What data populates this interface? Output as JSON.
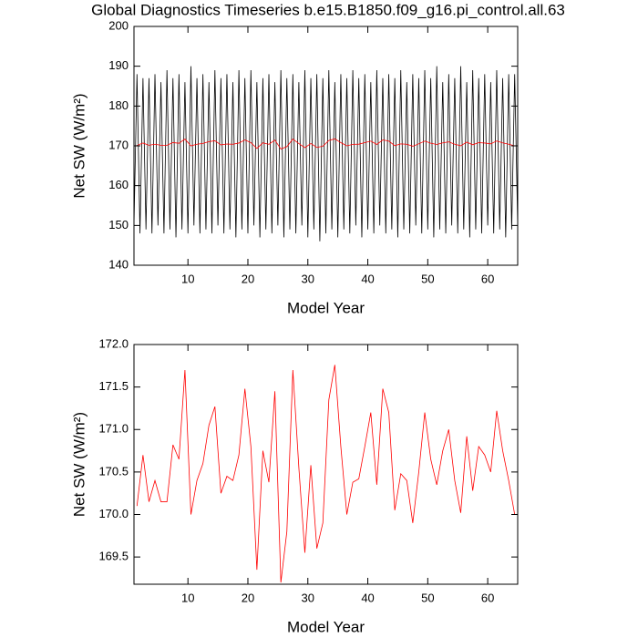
{
  "chart_data": [
    {
      "type": "line",
      "title": "Global Diagnostics Timeseries b.e15.B1850.f09_g16.pi_control.all.63",
      "xlabel": "Model Year",
      "ylabel": "Net SW (W/m²)",
      "xlim": [
        1,
        65
      ],
      "ylim": [
        140,
        200
      ],
      "xticks": [
        10,
        20,
        30,
        40,
        50,
        60
      ],
      "yticks": [
        140,
        150,
        160,
        170,
        180,
        190,
        200
      ],
      "series": [
        {
          "color": "#000000",
          "x": [
            1,
            1.5,
            2,
            2.5,
            3,
            3.5,
            4,
            4.5,
            5,
            5.5,
            6,
            6.5,
            7,
            7.5,
            8,
            8.5,
            9,
            9.5,
            10,
            10.5,
            11,
            11.5,
            12,
            12.5,
            13,
            13.5,
            14,
            14.5,
            15,
            15.5,
            16,
            16.5,
            17,
            17.5,
            18,
            18.5,
            19,
            19.5,
            20,
            20.5,
            21,
            21.5,
            22,
            22.5,
            23,
            23.5,
            24,
            24.5,
            25,
            25.5,
            26,
            26.5,
            27,
            27.5,
            28,
            28.5,
            29,
            29.5,
            30,
            30.5,
            31,
            31.5,
            32,
            32.5,
            33,
            33.5,
            34,
            34.5,
            35,
            35.5,
            36,
            36.5,
            37,
            37.5,
            38,
            38.5,
            39,
            39.5,
            40,
            40.5,
            41,
            41.5,
            42,
            42.5,
            43,
            43.5,
            44,
            44.5,
            45,
            45.5,
            46,
            46.5,
            47,
            47.5,
            48,
            48.5,
            49,
            49.5,
            50,
            50.5,
            51,
            51.5,
            52,
            52.5,
            53,
            53.5,
            54,
            54.5,
            55,
            55.5,
            56,
            56.5,
            57,
            57.5,
            58,
            58.5,
            59,
            59.5,
            60,
            60.5,
            61,
            61.5,
            62,
            62.5,
            63,
            63.5,
            64,
            64.5,
            65
          ],
          "values": [
            150,
            188,
            148,
            187,
            149,
            187,
            148,
            188,
            150,
            186,
            148,
            189,
            149,
            187,
            147,
            188,
            149,
            186,
            148,
            190,
            150,
            187,
            148,
            188,
            149,
            186,
            148,
            189,
            150,
            187,
            148,
            188,
            149,
            186,
            147,
            189,
            149,
            187,
            148,
            189,
            150,
            186,
            147,
            187,
            149,
            188,
            148,
            186,
            150,
            189,
            147,
            187,
            149,
            188,
            148,
            186,
            150,
            189,
            147,
            187,
            149,
            188,
            146,
            187,
            148,
            189,
            149,
            186,
            147,
            188,
            149,
            187,
            148,
            189,
            150,
            187,
            147,
            188,
            149,
            186,
            148,
            189,
            150,
            187,
            148,
            188,
            149,
            187,
            147,
            189,
            149,
            186,
            148,
            188,
            150,
            187,
            148,
            189,
            149,
            187,
            147,
            190,
            149,
            186,
            148,
            188,
            150,
            187,
            148,
            190,
            149,
            186,
            147,
            189,
            149,
            187,
            148,
            188,
            150,
            186,
            148,
            189,
            149,
            187,
            147,
            188,
            149,
            188,
            150
          ]
        },
        {
          "color": "#ff0000",
          "x": [
            1.5,
            2.5,
            3.5,
            4.5,
            5.5,
            6.5,
            7.5,
            8.5,
            9.5,
            10.5,
            11.5,
            12.5,
            13.5,
            14.5,
            15.5,
            16.5,
            17.5,
            18.5,
            19.5,
            20.5,
            21.5,
            22.5,
            23.5,
            24.5,
            25.5,
            26.5,
            27.5,
            28.5,
            29.5,
            30.5,
            31.5,
            32.5,
            33.5,
            34.5,
            35.5,
            36.5,
            37.5,
            38.5,
            39.5,
            40.5,
            41.5,
            42.5,
            43.5,
            44.5,
            45.5,
            46.5,
            47.5,
            48.5,
            49.5,
            50.5,
            51.5,
            52.5,
            53.5,
            54.5,
            55.5,
            56.5,
            57.5,
            58.5,
            59.5,
            60.5,
            61.5,
            62.5,
            63.5,
            64.5
          ],
          "values": [
            170.1,
            170.7,
            170.15,
            170.4,
            170.15,
            170.15,
            170.82,
            170.65,
            171.7,
            170.0,
            170.4,
            170.6,
            171.05,
            171.27,
            170.25,
            170.45,
            170.4,
            170.7,
            171.48,
            170.8,
            169.35,
            170.75,
            170.38,
            171.45,
            169.2,
            169.8,
            171.7,
            170.55,
            169.55,
            170.58,
            169.6,
            169.9,
            171.35,
            171.76,
            170.8,
            170.0,
            170.38,
            170.42,
            170.8,
            171.2,
            170.35,
            171.48,
            171.2,
            170.05,
            170.48,
            170.4,
            169.9,
            170.5,
            171.2,
            170.65,
            170.35,
            170.75,
            171.0,
            170.4,
            170.02,
            170.92,
            170.28,
            170.8,
            170.7,
            170.5,
            171.22,
            170.75,
            170.4,
            170.0
          ]
        }
      ]
    },
    {
      "type": "line",
      "xlabel": "Model Year",
      "ylabel": "Net SW (W/m²)",
      "xlim": [
        1,
        65
      ],
      "ylim": [
        169.18,
        172.0
      ],
      "xticks": [
        10,
        20,
        30,
        40,
        50,
        60
      ],
      "yticks": [
        169.5,
        {
          "value": 170,
          "label": "170.0"
        },
        170.5,
        {
          "value": 171,
          "label": "171.0"
        },
        171.5,
        {
          "value": 172,
          "label": "172.0"
        }
      ],
      "series": [
        {
          "color": "#ff0000",
          "x": [
            1.5,
            2.5,
            3.5,
            4.5,
            5.5,
            6.5,
            7.5,
            8.5,
            9.5,
            10.5,
            11.5,
            12.5,
            13.5,
            14.5,
            15.5,
            16.5,
            17.5,
            18.5,
            19.5,
            20.5,
            21.5,
            22.5,
            23.5,
            24.5,
            25.5,
            26.5,
            27.5,
            28.5,
            29.5,
            30.5,
            31.5,
            32.5,
            33.5,
            34.5,
            35.5,
            36.5,
            37.5,
            38.5,
            39.5,
            40.5,
            41.5,
            42.5,
            43.5,
            44.5,
            45.5,
            46.5,
            47.5,
            48.5,
            49.5,
            50.5,
            51.5,
            52.5,
            53.5,
            54.5,
            55.5,
            56.5,
            57.5,
            58.5,
            59.5,
            60.5,
            61.5,
            62.5,
            63.5,
            64.5
          ],
          "values": [
            170.1,
            170.7,
            170.15,
            170.4,
            170.15,
            170.15,
            170.82,
            170.65,
            171.7,
            170.0,
            170.4,
            170.6,
            171.05,
            171.27,
            170.25,
            170.45,
            170.4,
            170.7,
            171.48,
            170.8,
            169.35,
            170.75,
            170.38,
            171.45,
            169.2,
            169.8,
            171.7,
            170.55,
            169.55,
            170.58,
            169.6,
            169.9,
            171.35,
            171.76,
            170.8,
            170.0,
            170.38,
            170.42,
            170.8,
            171.2,
            170.35,
            171.48,
            171.2,
            170.05,
            170.48,
            170.4,
            169.9,
            170.5,
            171.2,
            170.65,
            170.35,
            170.75,
            171.0,
            170.4,
            170.02,
            170.92,
            170.28,
            170.8,
            170.7,
            170.5,
            171.22,
            170.75,
            170.4,
            170.0
          ]
        }
      ]
    }
  ]
}
